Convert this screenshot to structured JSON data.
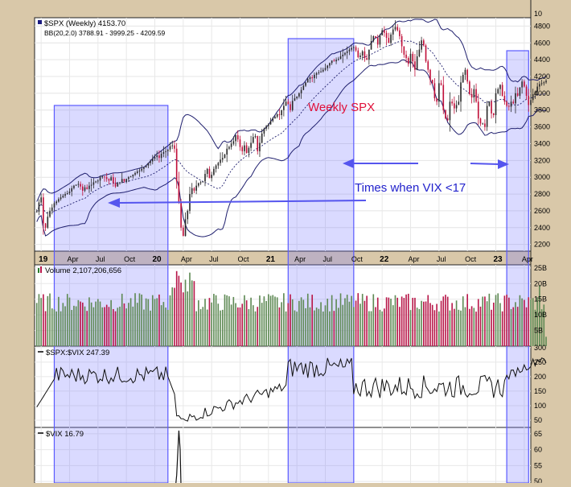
{
  "colors": {
    "frame": "#d9c8a9",
    "panel_bg": "#ffffff",
    "shade": "#7b7bff",
    "shade_stroke": "#5a5aff",
    "candle_up": "#2a2a2a",
    "candle_down": "#c0103a",
    "band": "#1f1f6e",
    "vol_up": "#5f8a55",
    "vol_down": "#b8184a",
    "annotation_red": "#e0103a",
    "annotation_blue": "#2222cc",
    "arrow_blue": "#5555ee",
    "line": "#111111"
  },
  "labels": {
    "price_title": "$SPX (Weekly) 4153.70",
    "bb_legend": "BB(20,2.0) 3788.91 - 3999.25 - 4209.59",
    "volume_title": "Volume 2,107,206,656",
    "ratio_title": "$SPX:$VIX 247.39",
    "vix_title": "$VIX 16.79",
    "weekly_spx": "Weekly SPX",
    "times_vix": "Times when VIX <17",
    "top_tick": "10"
  },
  "chart_data": [
    {
      "type": "line",
      "panel": "price",
      "title": "$SPX (Weekly) 4153.70",
      "legend": "BB(20,2.0) 3788.91 - 3999.25 - 4209.59",
      "annotation": "Weekly SPX",
      "y_ticks": [
        2200,
        2400,
        2600,
        2800,
        3000,
        3200,
        3400,
        3600,
        3800,
        4000,
        4200,
        4400,
        4600,
        4800
      ],
      "ylim": [
        2120,
        4900
      ],
      "x_ticks": [
        "19",
        "Apr",
        "Jul",
        "Oct",
        "20",
        "Apr",
        "Jul",
        "Oct",
        "21",
        "Apr",
        "Jul",
        "Oct",
        "22",
        "Apr",
        "Jul",
        "Oct",
        "23",
        "Apr"
      ],
      "x_tick_index": [
        2,
        15,
        28,
        41,
        54,
        67,
        80,
        93,
        106,
        119,
        132,
        145,
        158,
        171,
        184,
        197,
        210,
        223
      ],
      "xlim": [
        -1,
        226
      ],
      "closes": [
        2590,
        2700,
        2760,
        2450,
        2400,
        2530,
        2600,
        2640,
        2690,
        2710,
        2740,
        2760,
        2780,
        2800,
        2810,
        2830,
        2870,
        2900,
        2910,
        2920,
        2890,
        2840,
        2880,
        2860,
        2900,
        2910,
        2940,
        2950,
        2960,
        3000,
        3010,
        3000,
        2980,
        2960,
        3000,
        2930,
        2890,
        2930,
        2940,
        2980,
        2950,
        2980,
        3000,
        3010,
        3030,
        3050,
        3070,
        3080,
        3100,
        3120,
        3140,
        3170,
        3190,
        3220,
        3240,
        3260,
        3230,
        3280,
        3300,
        3310,
        3330,
        3370,
        3380,
        3340,
        2950,
        2710,
        2400,
        2300,
        2500,
        2600,
        2800,
        2870,
        2840,
        2900,
        2930,
        2940,
        2950,
        3040,
        3100,
        2990,
        3030,
        3100,
        3140,
        3170,
        3210,
        3230,
        3270,
        3340,
        3360,
        3400,
        3430,
        3500,
        3450,
        3360,
        3310,
        3380,
        3290,
        3350,
        3410,
        3480,
        3490,
        3310,
        3410,
        3520,
        3580,
        3610,
        3630,
        3670,
        3700,
        3720,
        3750,
        3740,
        3800,
        3850,
        3900,
        3870,
        3800,
        3910,
        3940,
        3960,
        4000,
        4040,
        4090,
        4130,
        4170,
        4190,
        4180,
        4220,
        4240,
        4250,
        4260,
        4280,
        4300,
        4330,
        4360,
        4390,
        4380,
        4400,
        4410,
        4440,
        4460,
        4480,
        4500,
        4520,
        4540,
        4550,
        4510,
        4430,
        4450,
        4500,
        4420,
        4400,
        4520,
        4620,
        4680,
        4660,
        4580,
        4690,
        4750,
        4720,
        4660,
        4600,
        4700,
        4760,
        4790,
        4750,
        4680,
        4560,
        4460,
        4420,
        4350,
        4470,
        4380,
        4280,
        4440,
        4520,
        4630,
        4570,
        4380,
        4280,
        4160,
        4120,
        3940,
        3900,
        4120,
        4100,
        3800,
        3700,
        3680,
        3900,
        3880,
        3820,
        3860,
        3900,
        4130,
        4220,
        4280,
        4140,
        3990,
        3950,
        4050,
        3900,
        3700,
        3640,
        3640,
        3600,
        3850,
        3900,
        3760,
        3740,
        4000,
        4050,
        4100,
        3970,
        3900,
        3850,
        3840,
        3900,
        3880,
        4000,
        3970,
        4070,
        4140,
        4080,
        3970,
        3860,
        3920,
        3990,
        4020,
        4080,
        4110,
        4120,
        4130,
        4150
      ],
      "shade_ranges": [
        [
          8,
          60
        ],
        [
          115,
          145
        ],
        [
          215,
          225
        ]
      ]
    },
    {
      "type": "bar",
      "panel": "volume",
      "title": "Volume 2,107,206,656",
      "y_ticks": [
        "5B",
        "10B",
        "15B",
        "20B",
        "25B"
      ],
      "ylim": [
        0,
        26
      ],
      "unit": "billions"
    },
    {
      "type": "line",
      "panel": "ratio",
      "title": "$SPX:$VIX 247.39",
      "y_ticks": [
        50,
        100,
        150,
        200,
        250,
        300
      ],
      "ylim": [
        25,
        305
      ],
      "last": 247.39
    },
    {
      "type": "line",
      "panel": "vix",
      "title": "$VIX 16.79",
      "y_ticks": [
        50,
        55,
        60,
        65
      ],
      "ylim": [
        48,
        67
      ],
      "last": 16.79
    }
  ]
}
